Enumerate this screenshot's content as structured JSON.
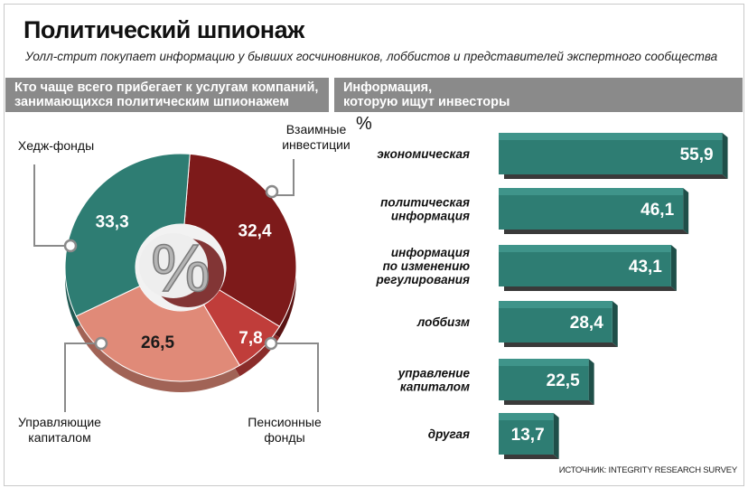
{
  "header": {
    "title": "Политический шпионаж",
    "subtitle": "Уолл-стрит покупает информацию у бывших госчиновников, лоббистов и представителей экспертного сообщества"
  },
  "left_section": {
    "heading_line1": "Кто чаще всего прибегает к услугам компаний,",
    "heading_line2": "занимающихся политическим шпионажем"
  },
  "right_section": {
    "heading_line1": "Информация,",
    "heading_line2": "которую ищут инвесторы",
    "unit": "%"
  },
  "source": "ИСТОЧНИК: INTEGRITY RESEARCH SURVEY",
  "colors": {
    "teal": "#2e7d73",
    "teal_light": "#3f948a",
    "maroon": "#7d1a1a",
    "red": "#c03d3a",
    "salmon": "#e08a78",
    "gray_header": "#8a8a8a"
  },
  "chart_data": [
    {
      "type": "pie",
      "center_label": "%",
      "slices": [
        {
          "name": "Взаимные инвестиции",
          "label_line1": "Взаимные",
          "label_line2": "инвестиции",
          "value": 32.4,
          "value_text": "32,4",
          "color": "#7d1a1a"
        },
        {
          "name": "Пенсионные фонды",
          "label_line1": "Пенсионные",
          "label_line2": "фонды",
          "value": 7.8,
          "value_text": "7,8",
          "color": "#c03d3a"
        },
        {
          "name": "Управляющие капиталом",
          "label_line1": "Управляющие",
          "label_line2": "капиталом",
          "value": 26.5,
          "value_text": "26,5",
          "color": "#e08a78"
        },
        {
          "name": "Хедж-фонды",
          "label_line1": "Хедж-фонды",
          "label_line2": "",
          "value": 33.3,
          "value_text": "33,3",
          "color": "#2e7d73"
        }
      ]
    },
    {
      "type": "bar",
      "orientation": "horizontal",
      "unit": "%",
      "categories": [
        [
          "экономическая"
        ],
        [
          "политическая",
          "информация"
        ],
        [
          "информация",
          "по изменению",
          "регулирования"
        ],
        [
          "лоббизм"
        ],
        [
          "управление",
          "капиталом"
        ],
        [
          "другая"
        ]
      ],
      "values": [
        55.9,
        46.1,
        43.1,
        28.4,
        22.5,
        13.7
      ],
      "value_labels": [
        "55,9",
        "46,1",
        "43,1",
        "28,4",
        "22,5",
        "13,7"
      ],
      "color": "#2e7d73"
    }
  ]
}
